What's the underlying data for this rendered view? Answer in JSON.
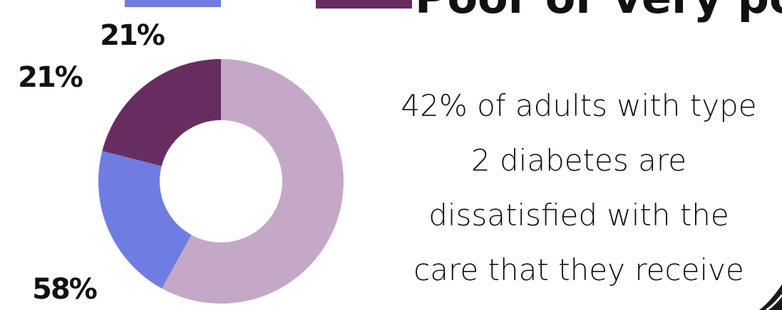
{
  "chart_data": {
    "type": "donut",
    "categories": [
      null,
      null,
      "Poor or very poor"
    ],
    "values": [
      58,
      21,
      21
    ],
    "value_labels": [
      "58%",
      "21%",
      "21%"
    ],
    "colors": [
      "#c5a8c8",
      "#6f7de3",
      "#682d60"
    ],
    "annotation_lines": [
      "42% of adults with type",
      "2 diabetes are",
      "dissatisfied with the",
      "care that they receive"
    ]
  }
}
